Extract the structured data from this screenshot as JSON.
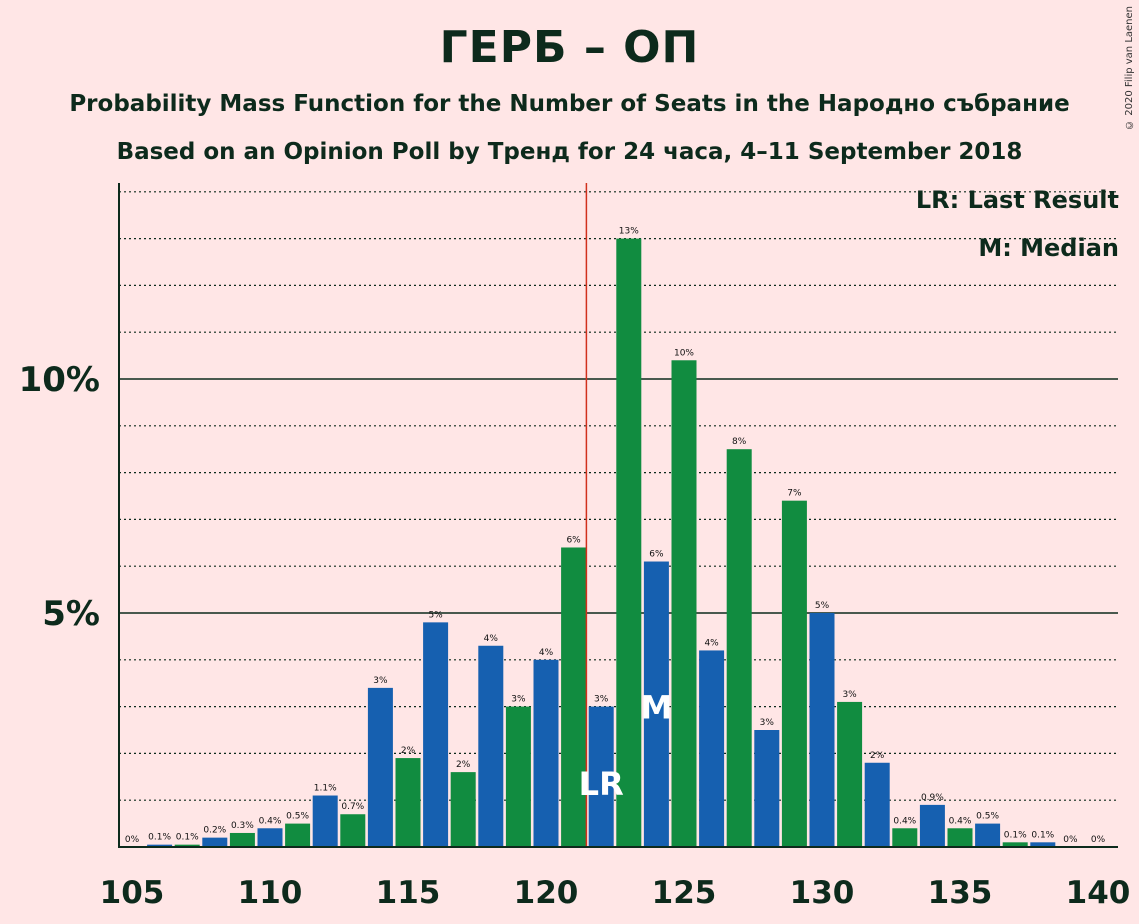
{
  "header": {
    "title": "ГЕРБ – ОП",
    "subtitle1": "Probability Mass Function for the Number of Seats in the Народно събрание",
    "subtitle2": "Based on an Opinion Poll by Тренд for 24 часа, 4–11 September 2018",
    "copyright": "© 2020 Filip van Laenen"
  },
  "legend": {
    "last_result": "LR: Last Result",
    "median": "M: Median"
  },
  "colors": {
    "background": "#ffe6e6",
    "bar_blue": "#1660b0",
    "bar_green": "#118c40",
    "last_result_line": "#d1301c",
    "text": "#0d2a1c"
  },
  "chart_data": {
    "type": "bar",
    "x": [
      105,
      106,
      107,
      108,
      109,
      110,
      111,
      112,
      113,
      114,
      115,
      116,
      117,
      118,
      119,
      120,
      121,
      122,
      123,
      124,
      125,
      126,
      127,
      128,
      129,
      130,
      131,
      132,
      133,
      134,
      135,
      136,
      137,
      138,
      139,
      140
    ],
    "values": [
      0,
      0.05,
      0.05,
      0.2,
      0.3,
      0.4,
      0.5,
      1.1,
      0.7,
      3.4,
      1.9,
      4.8,
      1.6,
      4.3,
      3.0,
      4.0,
      6.4,
      3.0,
      13.0,
      6.1,
      10.4,
      4.2,
      8.5,
      2.5,
      7.4,
      5.0,
      3.1,
      1.8,
      0.4,
      0.9,
      0.4,
      0.5,
      0.1,
      0.1,
      0,
      0
    ],
    "labels": [
      "0%",
      "0.1%",
      "0.1%",
      "0.2%",
      "0.3%",
      "0.4%",
      "0.5%",
      "1.1%",
      "0.7%",
      "3%",
      "2%",
      "5%",
      "2%",
      "4%",
      "3%",
      "4%",
      "6%",
      "3%",
      "13%",
      "6%",
      "10%",
      "4%",
      "8%",
      "3%",
      "7%",
      "5%",
      "3%",
      "2%",
      "0.4%",
      "0.9%",
      "0.4%",
      "0.5%",
      "0.1%",
      "0.1%",
      "0%",
      "0%"
    ],
    "xticks": [
      105,
      110,
      115,
      120,
      125,
      130,
      135,
      140
    ],
    "xtick_labels": [
      "105",
      "110",
      "115",
      "120",
      "125",
      "130",
      "135",
      "140"
    ],
    "yticks": [
      5,
      10
    ],
    "ytick_labels": [
      "5%",
      "10%"
    ],
    "ylim": [
      0,
      14
    ],
    "xlim": [
      105,
      140
    ],
    "last_result": 122,
    "last_result_label": "LR",
    "median": 124,
    "median_label": "M",
    "grid": "dotted every 1%, solid at 5% and 10%"
  }
}
